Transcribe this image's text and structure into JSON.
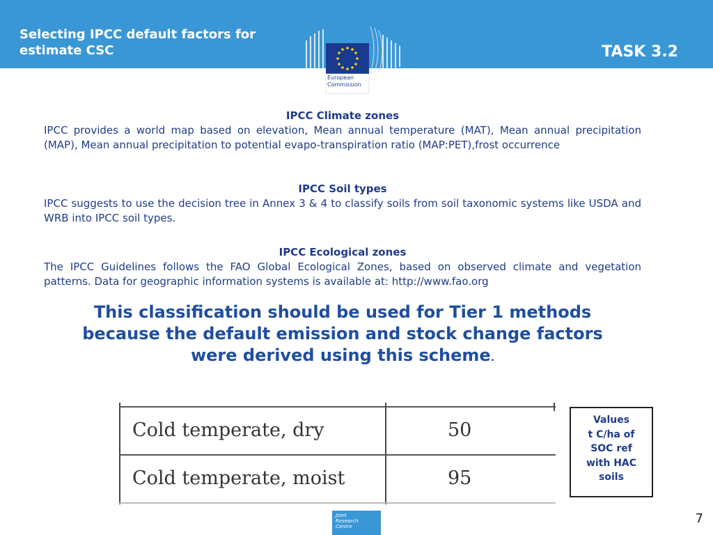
{
  "header": {
    "title": "Selecting IPCC default factors for estimate CSC",
    "task": "TASK 3.2",
    "logo_text": [
      "European",
      "Commission"
    ],
    "colors": {
      "bar": "#3a97d6",
      "text": "#1f3c88",
      "flag": "#1a3a8f",
      "stars": "#ffd400"
    }
  },
  "sections": [
    {
      "heading": "IPCC Climate zones",
      "body": "IPCC provides a world map based on elevation, Mean annual temperature (MAT), Mean annual precipitation (MAP), Mean annual precipitation to potential evapo-transpiration ratio (MAP:PET),frost occurrence"
    },
    {
      "heading": "IPCC Soil types",
      "body": "IPCC suggests to use the decision tree in Annex 3 & 4 to classify soils from soil taxonomic systems like USDA and WRB into IPCC soil types."
    },
    {
      "heading": "IPCC Ecological zones",
      "body": "The IPCC Guidelines follows the FAO Global Ecological Zones, based on observed climate and vegetation patterns. Data for geographic information systems is available at: http://www.fao.org"
    }
  ],
  "highlight": {
    "lines": [
      "This classification should be used for Tier 1 methods",
      "because the default emission and stock change factors",
      "were derived using this scheme"
    ],
    "trail": "."
  },
  "table": {
    "rows": [
      {
        "name": "Cold temperate, dry",
        "value": "50"
      },
      {
        "name": "Cold temperate, moist",
        "value": "95"
      }
    ]
  },
  "values_box": {
    "lines": [
      "Values",
      "t C/ha of",
      "SOC ref",
      "with HAC",
      "soils"
    ]
  },
  "footer": {
    "jrc_lines": [
      "Joint",
      "Research",
      "Centre"
    ],
    "page_number": "7"
  }
}
